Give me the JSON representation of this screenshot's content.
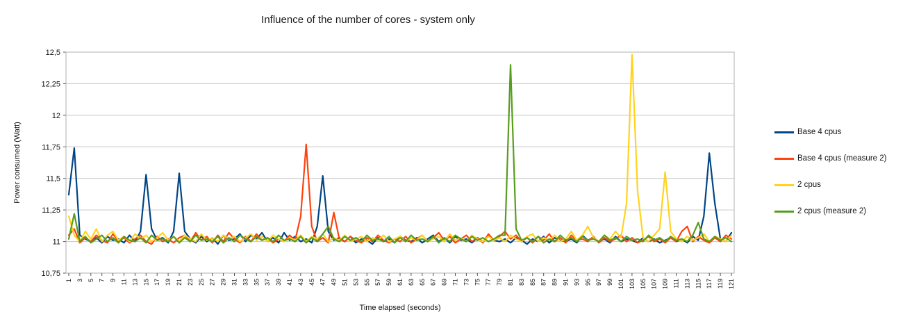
{
  "chart_data": {
    "type": "line",
    "title": "Influence of the number of cores - system only",
    "xlabel": "Time elapsed (seconds)",
    "ylabel": "Power consumed (Watt)",
    "ylim": [
      10.75,
      12.5
    ],
    "ytick_step": 0.25,
    "grid": "horizontal",
    "legend_position": "right",
    "background": "#ffffff",
    "yticks": [
      {
        "value": 10.75,
        "label": "10,75"
      },
      {
        "value": 11.0,
        "label": "11"
      },
      {
        "value": 11.25,
        "label": "11,25"
      },
      {
        "value": 11.5,
        "label": "11,5"
      },
      {
        "value": 11.75,
        "label": "11,75"
      },
      {
        "value": 12.0,
        "label": "12"
      },
      {
        "value": 12.25,
        "label": "12,25"
      },
      {
        "value": 12.5,
        "label": "12,5"
      }
    ],
    "x": [
      1,
      2,
      3,
      4,
      5,
      6,
      7,
      8,
      9,
      10,
      11,
      12,
      13,
      14,
      15,
      16,
      17,
      18,
      19,
      20,
      21,
      22,
      23,
      24,
      25,
      26,
      27,
      28,
      29,
      30,
      31,
      32,
      33,
      34,
      35,
      36,
      37,
      38,
      39,
      40,
      41,
      42,
      43,
      44,
      45,
      46,
      47,
      48,
      49,
      50,
      51,
      52,
      53,
      54,
      55,
      56,
      57,
      58,
      59,
      60,
      61,
      62,
      63,
      64,
      65,
      66,
      67,
      68,
      69,
      70,
      71,
      72,
      73,
      74,
      75,
      76,
      77,
      78,
      79,
      80,
      81,
      82,
      83,
      84,
      85,
      86,
      87,
      88,
      89,
      90,
      91,
      92,
      93,
      94,
      95,
      96,
      97,
      98,
      99,
      100,
      101,
      102,
      103,
      104,
      105,
      106,
      107,
      108,
      109,
      110,
      111,
      112,
      113,
      114,
      115,
      116,
      117,
      118,
      119,
      120,
      121
    ],
    "xtick_labels": [
      1,
      3,
      5,
      7,
      9,
      11,
      13,
      15,
      17,
      19,
      21,
      23,
      25,
      27,
      29,
      31,
      33,
      35,
      37,
      39,
      41,
      43,
      45,
      47,
      49,
      51,
      53,
      55,
      57,
      59,
      61,
      63,
      65,
      67,
      69,
      71,
      73,
      75,
      77,
      79,
      81,
      83,
      85,
      87,
      89,
      91,
      93,
      95,
      97,
      99,
      101,
      103,
      105,
      107,
      109,
      111,
      113,
      115,
      117,
      119,
      121
    ],
    "series": [
      {
        "name": "Base 4 cpus",
        "color": "#004586",
        "values": [
          11.37,
          11.74,
          11.05,
          11.02,
          11.0,
          11.03,
          10.99,
          11.04,
          11.01,
          11.02,
          10.99,
          11.05,
          11.0,
          11.08,
          11.53,
          11.1,
          11.01,
          11.03,
          10.99,
          11.08,
          11.54,
          11.08,
          11.02,
          10.99,
          11.04,
          11.0,
          11.03,
          10.98,
          11.05,
          11.01,
          11.02,
          11.06,
          11.0,
          11.05,
          11.02,
          11.07,
          11.0,
          11.03,
          10.99,
          11.07,
          11.01,
          11.04,
          11.0,
          11.02,
          10.99,
          11.12,
          11.52,
          11.08,
          11.01,
          11.03,
          11.0,
          11.04,
          10.99,
          11.02,
          11.01,
          10.98,
          11.03,
          11.0,
          11.02,
          10.99,
          11.04,
          11.01,
          11.0,
          11.03,
          10.99,
          11.02,
          11.05,
          11.0,
          11.03,
          10.99,
          11.04,
          11.01,
          11.02,
          10.99,
          11.03,
          11.0,
          11.05,
          11.01,
          11.0,
          11.02,
          10.99,
          11.03,
          11.01,
          10.98,
          11.02,
          11.0,
          11.04,
          10.99,
          11.03,
          11.01,
          11.0,
          11.02,
          10.99,
          11.05,
          11.01,
          11.03,
          11.0,
          11.02,
          10.99,
          11.04,
          11.0,
          11.02,
          11.01,
          10.99,
          11.03,
          11.0,
          11.02,
          10.99,
          11.01,
          11.03,
          11.0,
          11.02,
          10.99,
          11.04,
          11.01,
          11.2,
          11.7,
          11.3,
          11.02,
          11.0,
          11.07
        ]
      },
      {
        "name": "Base 4 cpus (measure 2)",
        "color": "#ff420e",
        "values": [
          11.05,
          11.1,
          10.99,
          11.03,
          11.0,
          11.05,
          11.01,
          10.99,
          11.06,
          11.0,
          11.03,
          10.99,
          11.02,
          11.05,
          11.0,
          10.98,
          11.04,
          11.0,
          11.02,
          10.99,
          11.03,
          11.05,
          11.0,
          11.07,
          11.01,
          11.04,
          10.99,
          11.05,
          11.0,
          11.07,
          11.02,
          10.99,
          11.04,
          11.0,
          11.06,
          11.01,
          11.03,
          10.99,
          11.02,
          11.0,
          11.05,
          11.01,
          11.2,
          11.77,
          11.12,
          11.0,
          11.03,
          10.99,
          11.23,
          11.02,
          11.0,
          11.04,
          11.01,
          10.99,
          11.03,
          11.0,
          11.05,
          11.01,
          10.99,
          11.02,
          11.0,
          11.04,
          10.99,
          11.02,
          11.05,
          11.0,
          11.03,
          11.07,
          11.01,
          11.04,
          10.99,
          11.02,
          11.05,
          11.0,
          11.03,
          10.99,
          11.06,
          11.01,
          11.04,
          11.08,
          11.02,
          11.05,
          11.0,
          11.03,
          10.99,
          11.04,
          11.01,
          11.06,
          11.0,
          11.03,
          10.99,
          11.05,
          11.01,
          11.02,
          11.0,
          11.04,
          10.99,
          11.03,
          11.0,
          11.02,
          11.05,
          11.0,
          11.03,
          10.99,
          11.01,
          11.04,
          11.0,
          11.02,
          10.99,
          11.03,
          11.0,
          11.08,
          11.12,
          11.0,
          11.04,
          11.01,
          10.99,
          11.03,
          11.0,
          11.05,
          11.02
        ]
      },
      {
        "name": "2 cpus",
        "color": "#ffd320",
        "values": [
          11.2,
          11.05,
          11.0,
          11.08,
          11.02,
          11.1,
          11.0,
          11.05,
          11.08,
          11.01,
          11.04,
          11.0,
          11.06,
          11.02,
          11.05,
          11.0,
          11.03,
          11.07,
          11.01,
          11.04,
          11.0,
          11.05,
          11.02,
          11.0,
          11.06,
          11.01,
          11.03,
          11.0,
          11.05,
          11.02,
          11.04,
          11.0,
          11.03,
          11.06,
          11.01,
          11.04,
          11.0,
          11.05,
          11.02,
          11.0,
          11.03,
          11.01,
          11.05,
          11.0,
          11.04,
          11.02,
          11.06,
          11.0,
          11.03,
          11.01,
          11.05,
          11.0,
          11.02,
          11.04,
          11.0,
          11.03,
          11.01,
          11.05,
          11.0,
          11.02,
          11.04,
          11.0,
          11.03,
          11.01,
          11.05,
          11.0,
          11.02,
          11.04,
          11.0,
          11.06,
          11.01,
          11.03,
          11.0,
          11.05,
          11.02,
          11.0,
          11.04,
          11.01,
          11.03,
          11.0,
          11.05,
          11.02,
          11.0,
          11.04,
          11.06,
          11.0,
          11.03,
          11.01,
          11.05,
          11.0,
          11.02,
          11.08,
          11.01,
          11.05,
          11.12,
          11.03,
          11.0,
          11.05,
          11.02,
          11.08,
          11.03,
          11.3,
          12.48,
          11.4,
          11.03,
          11.0,
          11.05,
          11.1,
          11.55,
          11.08,
          11.02,
          11.0,
          11.04,
          11.01,
          11.03,
          11.06,
          11.0,
          11.04,
          11.02,
          11.0,
          11.05
        ]
      },
      {
        "name": "2 cpus (measure 2)",
        "color": "#579d1c",
        "values": [
          11.02,
          11.22,
          11.0,
          11.04,
          10.99,
          11.02,
          11.05,
          11.0,
          11.03,
          10.99,
          11.04,
          11.01,
          11.0,
          11.03,
          10.99,
          11.05,
          11.01,
          11.02,
          11.0,
          11.04,
          10.99,
          11.03,
          11.0,
          11.05,
          11.01,
          11.02,
          11.0,
          11.04,
          10.99,
          11.03,
          11.0,
          11.05,
          11.02,
          11.0,
          11.04,
          11.01,
          11.03,
          11.0,
          11.05,
          11.01,
          11.02,
          11.0,
          11.04,
          10.99,
          11.03,
          11.0,
          11.06,
          11.12,
          11.02,
          11.0,
          11.04,
          11.01,
          11.03,
          11.0,
          11.05,
          11.01,
          11.02,
          11.0,
          11.04,
          10.99,
          11.03,
          11.0,
          11.05,
          11.01,
          11.02,
          11.0,
          11.04,
          10.99,
          11.03,
          11.0,
          11.05,
          11.02,
          11.0,
          11.04,
          11.01,
          11.03,
          11.0,
          11.02,
          11.05,
          11.05,
          12.4,
          11.1,
          11.01,
          11.03,
          11.0,
          11.04,
          10.99,
          11.02,
          11.0,
          11.05,
          11.01,
          11.03,
          11.0,
          11.04,
          11.01,
          11.02,
          11.0,
          11.05,
          11.01,
          11.03,
          11.0,
          11.04,
          11.01,
          11.02,
          11.0,
          11.05,
          11.01,
          11.03,
          11.0,
          11.04,
          11.01,
          11.02,
          11.0,
          11.05,
          11.15,
          11.02,
          11.0,
          11.04,
          11.01,
          11.03,
          11.0
        ]
      }
    ]
  }
}
